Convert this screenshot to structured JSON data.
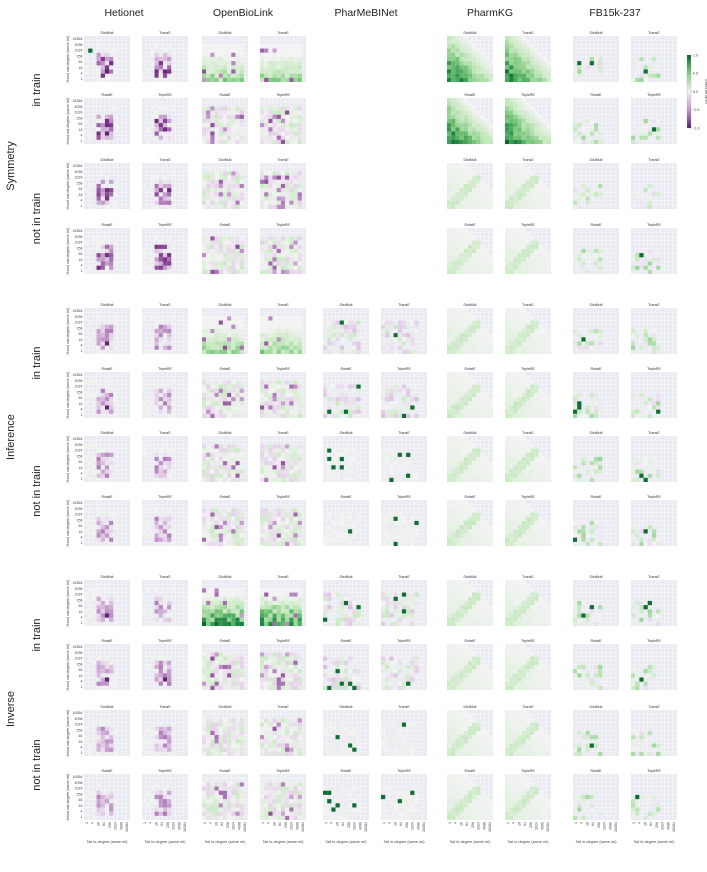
{
  "chart_data": {
    "type": "heatmap",
    "datasets": [
      "Hetionet",
      "OpenBioLink",
      "PharMeBINet",
      "PharmKG",
      "FB15k-237"
    ],
    "patterns": [
      "Symmetry",
      "Inference",
      "Inverse"
    ],
    "row_labels": [
      "in train",
      "not in train"
    ],
    "models": [
      "DistMult",
      "TransE",
      "RotatE",
      "TripleRE"
    ],
    "ylabel": "Head out-degree (same rel)",
    "xlabel": "Tail in-degree (same rel)",
    "yticks": [
      "16384",
      "4096",
      "1024",
      "256",
      "64",
      "16",
      "4",
      "1"
    ],
    "xticks": [
      "1",
      "4",
      "16",
      "64",
      "256",
      "1024",
      "4096",
      "16384"
    ],
    "colorbar": {
      "label": "Effect on MRR",
      "ticks": [
        "1.0",
        "0.5",
        "0.0",
        "-0.5",
        "-1.0"
      ],
      "range": [
        -1,
        1
      ]
    },
    "empty_panels": [
      {
        "dataset": "PharMeBINet",
        "pattern": "Symmetry"
      }
    ],
    "colors": {
      "positive": "#1b7837",
      "negative": "#762a83",
      "neutral": "#f3f3f3",
      "background": "#eaeaf2"
    }
  }
}
